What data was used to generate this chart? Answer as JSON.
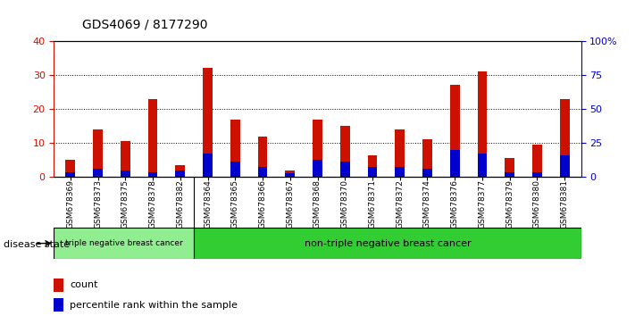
{
  "title": "GDS4069 / 8177290",
  "samples": [
    "GSM678369",
    "GSM678373",
    "GSM678375",
    "GSM678378",
    "GSM678382",
    "GSM678364",
    "GSM678365",
    "GSM678366",
    "GSM678367",
    "GSM678368",
    "GSM678370",
    "GSM678371",
    "GSM678372",
    "GSM678374",
    "GSM678376",
    "GSM678377",
    "GSM678379",
    "GSM678380",
    "GSM678381"
  ],
  "counts": [
    5,
    14,
    10.5,
    23,
    3.5,
    32,
    17,
    12,
    2,
    17,
    15,
    6.5,
    14,
    11,
    27,
    31,
    5.5,
    9.5,
    23
  ],
  "percentile_ranks": [
    1.5,
    2.5,
    2.0,
    1.5,
    2.0,
    7.0,
    4.5,
    3.0,
    1.0,
    5.0,
    4.5,
    3.0,
    3.0,
    2.5,
    8.0,
    7.0,
    1.5,
    1.5,
    6.5
  ],
  "groups": [
    {
      "label": "triple negative breast cancer",
      "start": 0,
      "end": 5,
      "color": "#90EE90"
    },
    {
      "label": "non-triple negative breast cancer",
      "start": 5,
      "end": 19,
      "color": "#32CD32"
    }
  ],
  "disease_state_label": "disease state",
  "left_ylim": [
    0,
    40
  ],
  "right_ylim": [
    0,
    100
  ],
  "left_yticks": [
    0,
    10,
    20,
    30,
    40
  ],
  "right_yticks": [
    0,
    25,
    50,
    75,
    100
  ],
  "right_yticklabels": [
    "0",
    "25",
    "50",
    "75",
    "100%"
  ],
  "bar_color_count": "#cc1100",
  "bar_color_pct": "#0000cc",
  "bar_width": 0.35,
  "background_color": "#ffffff",
  "plot_bg_color": "#ffffff",
  "grid_color": "#000000",
  "tick_label_color_left": "#cc1100",
  "tick_label_color_right": "#0000cc",
  "legend_count_label": "count",
  "legend_pct_label": "percentile rank within the sample",
  "xtick_bg_color": "#d3d3d3",
  "group1_n": 5,
  "group2_n": 14
}
